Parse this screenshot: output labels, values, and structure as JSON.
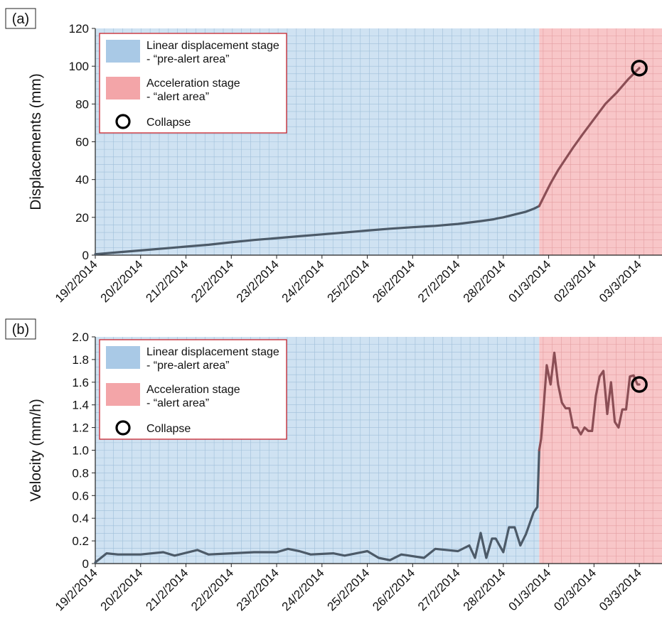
{
  "chart_data": [
    {
      "type": "line",
      "panel_label": "(a)",
      "ylabel": "Displacements (mm)",
      "ylim": [
        0,
        120
      ],
      "yticks": [
        "0",
        "20",
        "40",
        "60",
        "80",
        "100",
        "120"
      ],
      "xlim": [
        "19/2/2014",
        "03/3/2014 12:00"
      ],
      "xtick_labels": [
        "19/2/2014",
        "20/2/2014",
        "21/2/2014",
        "22/2/2014",
        "23/2/2014",
        "24/2/2014",
        "25/2/2014",
        "26/2/2014",
        "27/2/2014",
        "28/2/2014",
        "01/3/2014",
        "02/3/2014",
        "03/3/2014"
      ],
      "grid": true,
      "legend_position": "top-left",
      "stage_boundary": "28/2/2014 19:00",
      "collapse_marker": {
        "x": "03/3/2014 00:00",
        "y": 99
      },
      "legend": [
        {
          "name": "Linear displacement stage",
          "sub": "- “pre-alert area”",
          "color": "#a9c9e6"
        },
        {
          "name": "Acceleration stage",
          "sub": "- “alert area”",
          "color": "#f3a5a8"
        },
        {
          "name": "Collapse",
          "marker": "circle"
        }
      ],
      "series": [
        {
          "name": "",
          "x": [
            "19/2/2014 00:00",
            "19/2/2014 12:00",
            "20/2/2014 00:00",
            "20/2/2014 12:00",
            "21/2/2014 00:00",
            "21/2/2014 12:00",
            "22/2/2014 00:00",
            "22/2/2014 12:00",
            "23/2/2014 00:00",
            "23/2/2014 12:00",
            "24/2/2014 00:00",
            "24/2/2014 12:00",
            "25/2/2014 00:00",
            "25/2/2014 12:00",
            "26/2/2014 00:00",
            "26/2/2014 12:00",
            "27/2/2014 00:00",
            "27/2/2014 12:00",
            "27/2/2014 19:00",
            "27/2/2014 21:00",
            "28/2/2014 00:00",
            "28/2/2014 06:00",
            "28/2/2014 12:00",
            "28/2/2014 16:00",
            "28/2/2014 19:00",
            "28/2/2014 22:00",
            "01/3/2014 01:00",
            "01/3/2014 05:00",
            "01/3/2014 09:00",
            "01/3/2014 13:00",
            "01/3/2014 18:00",
            "02/3/2014 00:00",
            "02/3/2014 06:00",
            "02/3/2014 12:00",
            "02/3/2014 18:00",
            "03/3/2014 00:00"
          ],
          "y": [
            0.5,
            1.5,
            2.5,
            3.5,
            4.5,
            5.5,
            6.8,
            8,
            9,
            10,
            11,
            12,
            13,
            14,
            14.8,
            15.5,
            16.5,
            18,
            19,
            19.5,
            20,
            21.5,
            23,
            24.5,
            26,
            32,
            38,
            45,
            51,
            57,
            64,
            72,
            80,
            86,
            93,
            99
          ]
        }
      ]
    },
    {
      "type": "line",
      "panel_label": "(b)",
      "ylabel": "Velocity (mm/h)",
      "ylim": [
        0,
        2.0
      ],
      "yticks": [
        "0",
        "0.2",
        "0.4",
        "0.6",
        "0.8",
        "1.0",
        "1.2",
        "1.4",
        "1.6",
        "1.8",
        "2.0"
      ],
      "xlim": [
        "19/2/2014",
        "03/3/2014 12:00"
      ],
      "xtick_labels": [
        "19/2/2014",
        "20/2/2014",
        "21/2/2014",
        "22/2/2014",
        "23/2/2014",
        "24/2/2014",
        "25/2/2014",
        "26/2/2014",
        "27/2/2014",
        "28/2/2014",
        "01/3/2014",
        "02/3/2014",
        "03/3/2014"
      ],
      "grid": true,
      "legend_position": "top-left",
      "stage_boundary": "28/2/2014 19:00",
      "collapse_marker": {
        "x": "03/3/2014 00:00",
        "y": 1.58
      },
      "legend": [
        {
          "name": "Linear displacement stage",
          "sub": "- “pre-alert area”",
          "color": "#a9c9e6"
        },
        {
          "name": "Acceleration stage",
          "sub": "- “alert area”",
          "color": "#f3a5a8"
        },
        {
          "name": "Collapse",
          "marker": "circle"
        }
      ],
      "series": [
        {
          "name": "",
          "x": [
            "19/2/2014 00:00",
            "19/2/2014 06:00",
            "19/2/2014 12:00",
            "20/2/2014 00:00",
            "20/2/2014 12:00",
            "20/2/2014 18:00",
            "21/2/2014 06:00",
            "21/2/2014 12:00",
            "22/2/2014 00:00",
            "22/2/2014 12:00",
            "23/2/2014 00:00",
            "23/2/2014 06:00",
            "23/2/2014 12:00",
            "23/2/2014 18:00",
            "24/2/2014 06:00",
            "24/2/2014 12:00",
            "25/2/2014 00:00",
            "25/2/2014 06:00",
            "25/2/2014 12:00",
            "25/2/2014 18:00",
            "26/2/2014 06:00",
            "26/2/2014 12:00",
            "27/2/2014 00:00",
            "27/2/2014 06:00",
            "27/2/2014 09:00",
            "27/2/2014 12:00",
            "27/2/2014 15:00",
            "27/2/2014 18:00",
            "27/2/2014 20:00",
            "28/2/2014 00:00",
            "28/2/2014 03:00",
            "28/2/2014 06:00",
            "28/2/2014 09:00",
            "28/2/2014 12:00",
            "28/2/2014 16:00",
            "28/2/2014 18:00",
            "28/2/2014 19:00",
            "28/2/2014 20:00",
            "28/2/2014 21:00",
            "28/2/2014 23:00",
            "01/3/2014 01:00",
            "01/3/2014 03:00",
            "01/3/2014 05:00",
            "01/3/2014 07:00",
            "01/3/2014 09:00",
            "01/3/2014 11:00",
            "01/3/2014 13:00",
            "01/3/2014 15:00",
            "01/3/2014 17:00",
            "01/3/2014 19:00",
            "01/3/2014 21:00",
            "01/3/2014 23:00",
            "02/3/2014 01:00",
            "02/3/2014 03:00",
            "02/3/2014 05:00",
            "02/3/2014 07:00",
            "02/3/2014 09:00",
            "02/3/2014 11:00",
            "02/3/2014 13:00",
            "02/3/2014 15:00",
            "02/3/2014 17:00",
            "02/3/2014 19:00",
            "02/3/2014 21:00",
            "02/3/2014 23:00",
            "03/3/2014 00:00"
          ],
          "y": [
            0.01,
            0.09,
            0.08,
            0.08,
            0.1,
            0.07,
            0.12,
            0.08,
            0.09,
            0.1,
            0.1,
            0.13,
            0.11,
            0.08,
            0.09,
            0.07,
            0.11,
            0.05,
            0.03,
            0.08,
            0.05,
            0.13,
            0.11,
            0.16,
            0.05,
            0.27,
            0.05,
            0.22,
            0.22,
            0.1,
            0.32,
            0.32,
            0.16,
            0.26,
            0.45,
            0.5,
            1.0,
            1.1,
            1.3,
            1.75,
            1.58,
            1.86,
            1.58,
            1.42,
            1.37,
            1.37,
            1.2,
            1.2,
            1.14,
            1.2,
            1.17,
            1.17,
            1.48,
            1.65,
            1.7,
            1.32,
            1.6,
            1.25,
            1.2,
            1.36,
            1.36,
            1.65,
            1.66,
            1.58,
            1.58
          ]
        }
      ]
    }
  ]
}
